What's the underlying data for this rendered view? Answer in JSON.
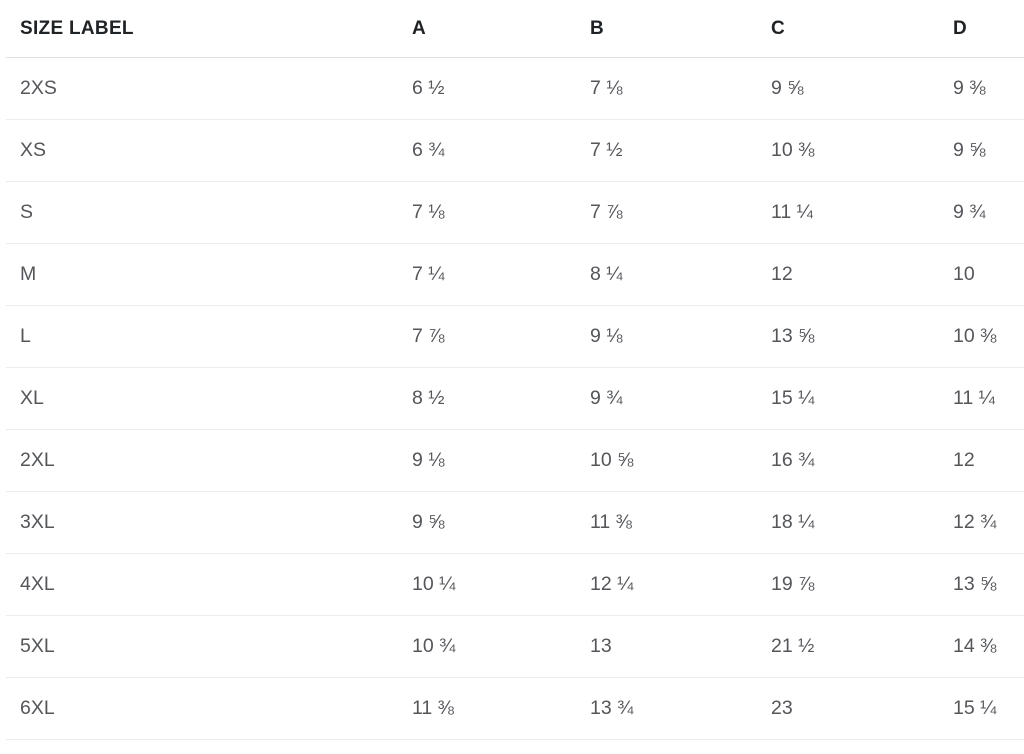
{
  "colors": {
    "background": "#ffffff",
    "header_text": "#202326",
    "body_text": "#54565a",
    "header_divider": "#e0e0e0",
    "row_divider": "#ececec"
  },
  "table": {
    "column_keys": [
      "size",
      "a",
      "b",
      "c",
      "d"
    ],
    "columns": [
      "SIZE LABEL",
      "A",
      "B",
      "C",
      "D"
    ],
    "rows": [
      {
        "size": "2XS",
        "a": "6 ½",
        "b": "7 ⅛",
        "c": "9 ⅝",
        "d": "9 ⅜"
      },
      {
        "size": "XS",
        "a": "6 ¾",
        "b": "7 ½",
        "c": "10 ⅜",
        "d": "9 ⅝"
      },
      {
        "size": "S",
        "a": "7 ⅛",
        "b": "7 ⅞",
        "c": "11 ¼",
        "d": "9 ¾"
      },
      {
        "size": "M",
        "a": "7 ¼",
        "b": "8 ¼",
        "c": "12",
        "d": "10"
      },
      {
        "size": "L",
        "a": "7 ⅞",
        "b": "9 ⅛",
        "c": "13 ⅝",
        "d": "10 ⅜"
      },
      {
        "size": "XL",
        "a": "8 ½",
        "b": "9 ¾",
        "c": "15 ¼",
        "d": "11 ¼"
      },
      {
        "size": "2XL",
        "a": "9 ⅛",
        "b": "10 ⅝",
        "c": "16 ¾",
        "d": "12"
      },
      {
        "size": "3XL",
        "a": "9 ⅝",
        "b": "11 ⅜",
        "c": "18 ¼",
        "d": "12 ¾"
      },
      {
        "size": "4XL",
        "a": "10 ¼",
        "b": "12 ¼",
        "c": "19 ⅞",
        "d": "13 ⅝"
      },
      {
        "size": "5XL",
        "a": "10 ¾",
        "b": "13",
        "c": "21 ½",
        "d": "14 ⅜"
      },
      {
        "size": "6XL",
        "a": "11 ⅜",
        "b": "13 ¾",
        "c": "23",
        "d": "15 ¼"
      }
    ]
  }
}
